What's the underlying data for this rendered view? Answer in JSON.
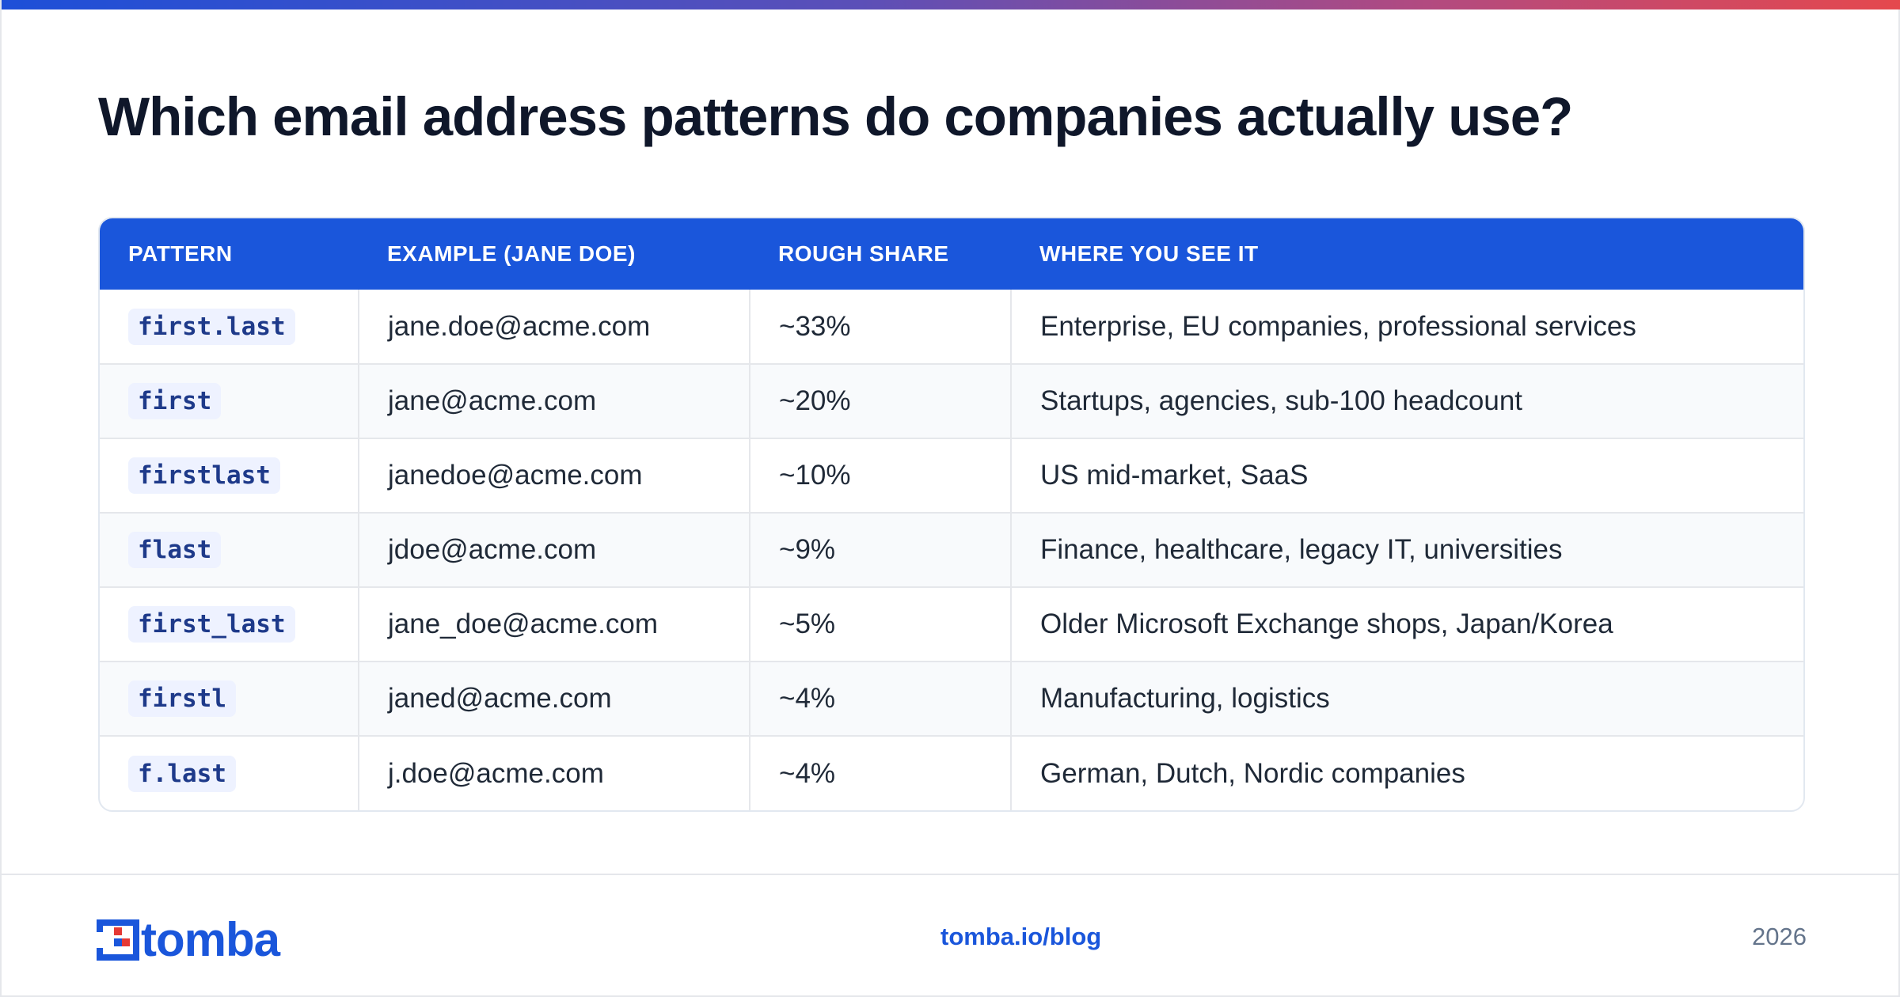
{
  "title": "Which email address patterns do companies actually use?",
  "colors": {
    "accent": "#1a56db",
    "gradient_start": "#1d4fd8",
    "gradient_end": "#e5484d",
    "logo_red": "#e53935",
    "row_stripe": "#f8fafc"
  },
  "table": {
    "headers": [
      "PATTERN",
      "EXAMPLE (JANE DOE)",
      "ROUGH SHARE",
      "WHERE YOU SEE IT"
    ],
    "rows": [
      {
        "pattern": "first.last",
        "example": "jane.doe@acme.com",
        "share": "~33%",
        "where": "Enterprise, EU companies, professional services"
      },
      {
        "pattern": "first",
        "example": "jane@acme.com",
        "share": "~20%",
        "where": "Startups, agencies, sub-100 headcount"
      },
      {
        "pattern": "firstlast",
        "example": "janedoe@acme.com",
        "share": "~10%",
        "where": "US mid-market, SaaS"
      },
      {
        "pattern": "flast",
        "example": "jdoe@acme.com",
        "share": "~9%",
        "where": "Finance, healthcare, legacy IT, universities"
      },
      {
        "pattern": "first_last",
        "example": "jane_doe@acme.com",
        "share": "~5%",
        "where": "Older Microsoft Exchange shops, Japan/Korea"
      },
      {
        "pattern": "firstl",
        "example": "janed@acme.com",
        "share": "~4%",
        "where": "Manufacturing, logistics"
      },
      {
        "pattern": "f.last",
        "example": "j.doe@acme.com",
        "share": "~4%",
        "where": "German, Dutch, Nordic companies"
      }
    ]
  },
  "footer": {
    "logo_text": "tomba",
    "logo_icon": "tomba-logo-icon",
    "link": "tomba.io/blog",
    "year": "2026"
  }
}
